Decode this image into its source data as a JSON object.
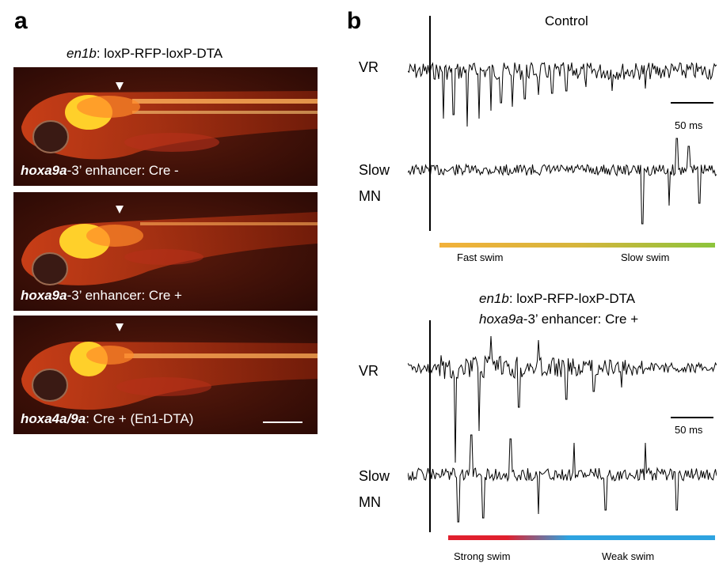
{
  "panel_a": {
    "letter": "a",
    "title_italic": "en1b",
    "title_rest": ": loxP-RFP-loxP-DTA",
    "images": [
      {
        "label_italic": "hoxa9a",
        "label_rest": "-3’  enhancer: Cre -"
      },
      {
        "label_italic": "hoxa9a",
        "label_rest": "-3’  enhancer: Cre +"
      },
      {
        "label_italic": "hoxa4a/9a",
        "label_rest": ": Cre + (En1-DTA)"
      }
    ]
  },
  "panel_b": {
    "letter": "b",
    "control": {
      "title": "Control",
      "vr_label": "VR",
      "mn_label_1": "Slow",
      "mn_label_2": "MN",
      "scale_label": "50 ms",
      "bar_left": "Fast swim",
      "bar_right": "Slow swim",
      "bar_colors": [
        "#f2b13a",
        "#8cc43c"
      ]
    },
    "mutant": {
      "title1_italic": "en1b",
      "title1_rest": ": loxP-RFP-loxP-DTA",
      "title2_italic": "hoxa9a",
      "title2_rest": "-3’  enhancer: Cre +",
      "vr_label": "VR",
      "mn_label_1": "Slow",
      "mn_label_2": "MN",
      "scale_label": "50 ms",
      "bar_left": "Strong swim",
      "bar_right": "Weak swim",
      "bar_colors": [
        "#e0202e",
        "#2ea3e0"
      ]
    }
  }
}
